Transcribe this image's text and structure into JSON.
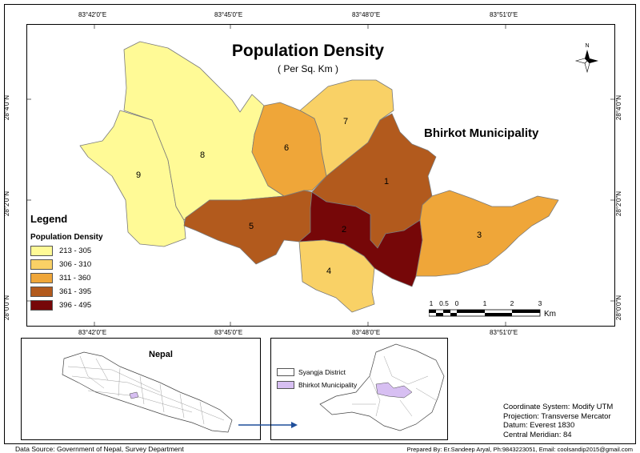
{
  "title": "Population Density",
  "subtitle": "( Per Sq. Km )",
  "municipality_name": "Bhirkot Municipality",
  "top_longitude_ticks": [
    "83°42'0\"E",
    "83°45'0\"E",
    "83°48'0\"E",
    "83°51'0\"E"
  ],
  "bottom_longitude_ticks": [
    "83°42'0\"E",
    "83°45'0\"E",
    "83°48'0\"E",
    "83°51'0\"E"
  ],
  "left_latitude_ticks": [
    "28°4'0\"N",
    "28°2'0\"N",
    "28°0'0\"N"
  ],
  "right_latitude_ticks": [
    "28°4'0\"N",
    "28°2'0\"N",
    "28°0'0\"N"
  ],
  "legend": {
    "heading": "Legend",
    "subheading": "Population Density",
    "classes": [
      {
        "label": "213 - 305",
        "color": "#FFFA96"
      },
      {
        "label": "306 - 310",
        "color": "#F9D166"
      },
      {
        "label": "311 - 360",
        "color": "#EFA639"
      },
      {
        "label": "361 - 395",
        "color": "#B25A1D"
      },
      {
        "label": "396 - 495",
        "color": "#760708"
      }
    ]
  },
  "wards": [
    {
      "label": "1",
      "class": 3
    },
    {
      "label": "2",
      "class": 4
    },
    {
      "label": "3",
      "class": 2
    },
    {
      "label": "4",
      "class": 1
    },
    {
      "label": "5",
      "class": 3
    },
    {
      "label": "6",
      "class": 2
    },
    {
      "label": "7",
      "class": 1
    },
    {
      "label": "8",
      "class": 0
    },
    {
      "label": "9",
      "class": 0
    }
  ],
  "north_arrow_label": "N",
  "scale": {
    "tick_labels": [
      "1",
      "0.5",
      "0",
      "1",
      "2",
      "3"
    ],
    "unit": "Km"
  },
  "inset_nepal_title": "Nepal",
  "inset_legend": [
    {
      "label": "Syangja District",
      "color": "#FFFFFF"
    },
    {
      "label": "Bhirkot Municipality",
      "color": "#D7BFF2"
    }
  ],
  "coordinate_info": [
    "Coordinate System: Modify UTM",
    "Projection: Transverse Mercator",
    "Datum: Everest 1830",
    "Central Meridian: 84"
  ],
  "data_source": "Data Source: Government of Nepal, Survey Department",
  "prepared_by": "Prepared By: Er.Sandeep Aryal, Ph:9843223051, Email: coolsandip2015@gmail.com"
}
